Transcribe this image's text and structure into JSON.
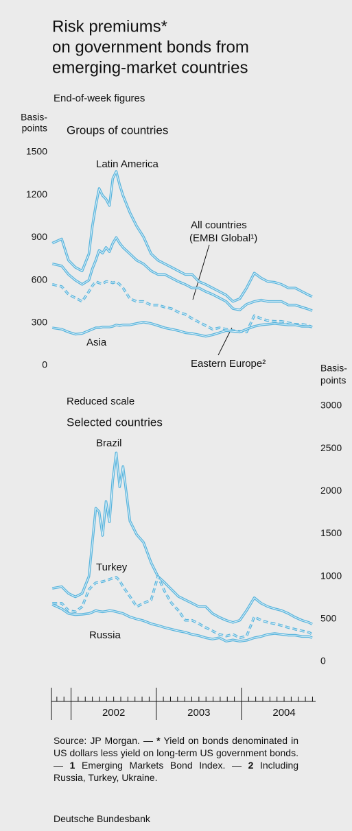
{
  "title": [
    "Risk premiums*",
    "on government bonds from",
    "emerging-market countries"
  ],
  "subtitle": "End-of-week figures",
  "separator": "—",
  "footnotes": [
    {
      "mark": "",
      "text": "Source: JP Morgan."
    },
    {
      "mark": "*",
      "text": "Yield on bonds denominated in US dollars less yield on long-term US government bonds."
    },
    {
      "mark": "1",
      "text": "Emerging Markets Bond Index."
    },
    {
      "mark": "2",
      "text": "Including Russia, Turkey, Ukraine."
    }
  ],
  "publisher": "Deutsche Bundesbank",
  "chart_data": [
    {
      "type": "line",
      "title": "Groups of countries",
      "ylabel": [
        "Basis-",
        "points"
      ],
      "x": [
        2001.78,
        2001.89,
        2001.97,
        2002.05,
        2002.13,
        2002.21,
        2002.25,
        2002.29,
        2002.33,
        2002.37,
        2002.41,
        2002.45,
        2002.49,
        2002.53,
        2002.57,
        2002.61,
        2002.69,
        2002.77,
        2002.85,
        2002.94,
        2003.02,
        2003.1,
        2003.18,
        2003.26,
        2003.34,
        2003.42,
        2003.5,
        2003.58,
        2003.66,
        2003.74,
        2003.82,
        2003.9,
        2003.98,
        2004.06,
        2004.15,
        2004.23,
        2004.31,
        2004.39,
        2004.47,
        2004.55,
        2004.63,
        2004.71,
        2004.79,
        2004.83
      ],
      "xlim": [
        2001.77,
        2004.87
      ],
      "ylim": [
        0,
        1500
      ],
      "yticks": [
        0,
        300,
        600,
        900,
        1200,
        1500
      ],
      "series": [
        {
          "name": [
            "Latin America"
          ],
          "color": "#5ab4dc",
          "dashed": false,
          "values": [
            860,
            890,
            740,
            690,
            665,
            785,
            980,
            1125,
            1245,
            1195,
            1170,
            1125,
            1315,
            1365,
            1270,
            1195,
            1075,
            980,
            905,
            785,
            740,
            715,
            690,
            665,
            640,
            640,
            590,
            570,
            545,
            520,
            495,
            450,
            470,
            545,
            650,
            615,
            590,
            585,
            570,
            545,
            545,
            520,
            495,
            485
          ]
        },
        {
          "name": [
            "All countries",
            "(EMBI Global¹)"
          ],
          "color": "#5ab4dc",
          "dashed": false,
          "values": [
            715,
            700,
            640,
            600,
            570,
            600,
            680,
            740,
            810,
            790,
            830,
            800,
            860,
            900,
            860,
            830,
            785,
            740,
            715,
            665,
            640,
            640,
            615,
            590,
            570,
            545,
            545,
            520,
            500,
            475,
            450,
            400,
            390,
            430,
            450,
            460,
            450,
            450,
            450,
            425,
            425,
            410,
            395,
            385
          ]
        },
        {
          "name": [
            "Eastern Europe²"
          ],
          "color": "#5ab4dc",
          "dashed": true,
          "values": [
            570,
            555,
            500,
            475,
            450,
            520,
            560,
            590,
            580,
            575,
            590,
            590,
            580,
            590,
            570,
            545,
            470,
            450,
            450,
            425,
            425,
            410,
            400,
            375,
            360,
            330,
            305,
            280,
            255,
            265,
            255,
            245,
            240,
            235,
            350,
            330,
            315,
            310,
            310,
            300,
            290,
            290,
            280,
            270
          ]
        },
        {
          "name": [
            "Asia"
          ],
          "color": "#5ab4dc",
          "dashed": false,
          "values": [
            265,
            255,
            235,
            220,
            225,
            245,
            255,
            265,
            265,
            270,
            270,
            270,
            275,
            285,
            280,
            285,
            285,
            295,
            305,
            295,
            280,
            265,
            255,
            245,
            230,
            225,
            215,
            205,
            215,
            230,
            245,
            240,
            235,
            255,
            275,
            285,
            290,
            295,
            290,
            285,
            285,
            275,
            275,
            270
          ]
        }
      ]
    },
    {
      "type": "line",
      "title": "Selected countries",
      "note": "Reduced scale",
      "ylabel": [
        "Basis-",
        "points"
      ],
      "x": [
        2001.78,
        2001.89,
        2001.97,
        2002.05,
        2002.13,
        2002.21,
        2002.25,
        2002.29,
        2002.33,
        2002.37,
        2002.41,
        2002.45,
        2002.49,
        2002.53,
        2002.57,
        2002.61,
        2002.69,
        2002.77,
        2002.85,
        2002.94,
        2003.02,
        2003.1,
        2003.18,
        2003.26,
        2003.34,
        2003.42,
        2003.5,
        2003.58,
        2003.66,
        2003.74,
        2003.82,
        2003.9,
        2003.98,
        2004.06,
        2004.15,
        2004.23,
        2004.31,
        2004.39,
        2004.47,
        2004.55,
        2004.63,
        2004.71,
        2004.79,
        2004.83
      ],
      "xlim": [
        2001.77,
        2004.87
      ],
      "xticks": [
        2002,
        2003,
        2004
      ],
      "ylim": [
        0,
        3000
      ],
      "yticks": [
        0,
        500,
        1000,
        1500,
        2000,
        2500,
        3000
      ],
      "series": [
        {
          "name": [
            "Brazil"
          ],
          "color": "#5ab4dc",
          "dashed": false,
          "values": [
            860,
            880,
            800,
            760,
            800,
            1000,
            1400,
            1800,
            1760,
            1480,
            1880,
            1640,
            2130,
            2450,
            2050,
            2290,
            1650,
            1490,
            1400,
            1160,
            1000,
            925,
            845,
            765,
            725,
            685,
            645,
            645,
            565,
            520,
            485,
            460,
            485,
            600,
            750,
            685,
            645,
            620,
            600,
            565,
            520,
            485,
            460,
            440
          ]
        },
        {
          "name": [
            "Turkey"
          ],
          "color": "#5ab4dc",
          "dashed": true,
          "values": [
            685,
            685,
            600,
            585,
            645,
            845,
            890,
            925,
            930,
            940,
            950,
            965,
            980,
            990,
            950,
            880,
            765,
            645,
            685,
            725,
            1000,
            820,
            685,
            600,
            485,
            485,
            445,
            400,
            360,
            320,
            300,
            320,
            280,
            300,
            525,
            485,
            460,
            445,
            425,
            400,
            380,
            360,
            345,
            320
          ]
        },
        {
          "name": [
            "Russia"
          ],
          "color": "#5ab4dc",
          "dashed": false,
          "values": [
            670,
            620,
            565,
            550,
            555,
            565,
            580,
            600,
            590,
            585,
            590,
            600,
            595,
            585,
            575,
            565,
            525,
            500,
            480,
            445,
            425,
            400,
            380,
            360,
            345,
            320,
            305,
            280,
            265,
            280,
            240,
            255,
            240,
            250,
            280,
            295,
            320,
            330,
            320,
            310,
            310,
            295,
            295,
            280
          ]
        }
      ]
    }
  ]
}
